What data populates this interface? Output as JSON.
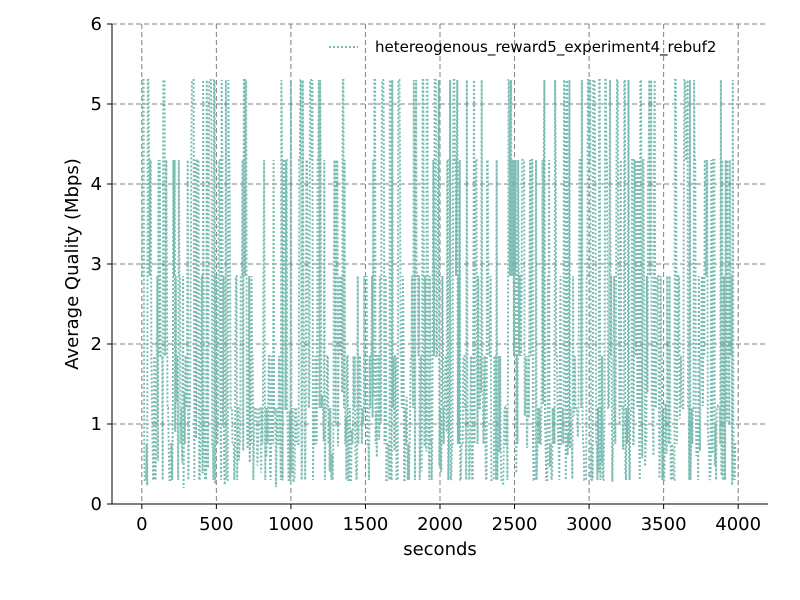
{
  "chart_data": {
    "type": "line",
    "title": "",
    "xlabel": "seconds",
    "ylabel": "Average Quality (Mbps)",
    "xlim": [
      -200,
      4200
    ],
    "ylim": [
      0,
      6
    ],
    "x_ticks": [
      0,
      500,
      1000,
      1500,
      2000,
      2500,
      3000,
      3500,
      4000
    ],
    "x_tick_labels": [
      "0",
      "500",
      "1000",
      "1500",
      "2000",
      "2500",
      "3000",
      "3500",
      "4000"
    ],
    "y_ticks": [
      0,
      1,
      2,
      3,
      4,
      5,
      6
    ],
    "y_tick_labels": [
      "0",
      "1",
      "2",
      "3",
      "4",
      "5",
      "6"
    ],
    "grid": true,
    "legend_position": "top-right",
    "quality_levels": [
      0.3,
      0.75,
      1.2,
      1.85,
      2.85,
      4.3,
      5.3
    ],
    "series": [
      {
        "name": "hetereogenous_reward5_experiment4_rebuf2",
        "color": "#7bbcb2",
        "line_style": "dotted",
        "x_start": 0,
        "x_step": 4,
        "x_end": 3980
      }
    ]
  }
}
